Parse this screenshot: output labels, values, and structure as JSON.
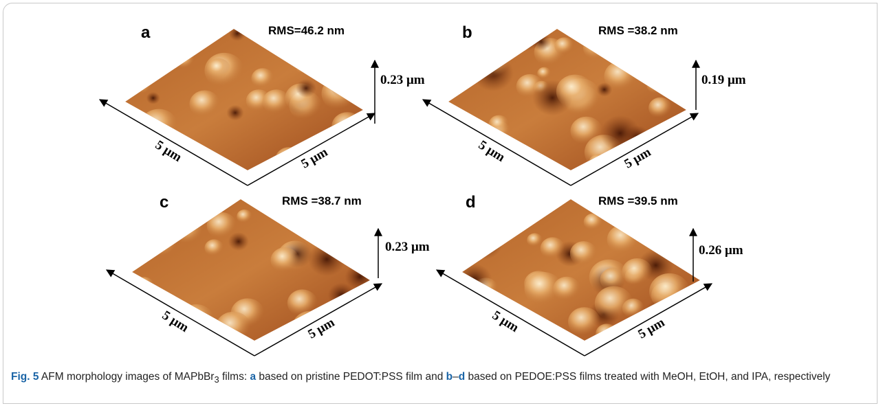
{
  "panels": [
    {
      "label": "a",
      "rms": "RMS=46.2 nm",
      "height": "0.23 μm",
      "x_axis": "5 μm",
      "y_axis": "5 μm"
    },
    {
      "label": "b",
      "rms": "RMS =38.2 nm",
      "height": "0.19 μm",
      "x_axis": "5 μm",
      "y_axis": "5 μm"
    },
    {
      "label": "c",
      "rms": "RMS =38.7 nm",
      "height": "0.23 μm",
      "x_axis": "5 μm",
      "y_axis": "5 μm"
    },
    {
      "label": "d",
      "rms": "RMS =39.5 nm",
      "height": "0.26 μm",
      "x_axis": "5 μm",
      "y_axis": "5 μm"
    }
  ],
  "caption": {
    "parts": [
      "Fig. 5",
      " AFM morphology images of MAPbBr",
      "3",
      " films: ",
      "a",
      " based on pristine PEDOT:PSS film and ",
      "b",
      "–",
      "d",
      " based on PEDOE:PSS films treated with MeOH, EtOH, and IPA, respectively"
    ]
  }
}
